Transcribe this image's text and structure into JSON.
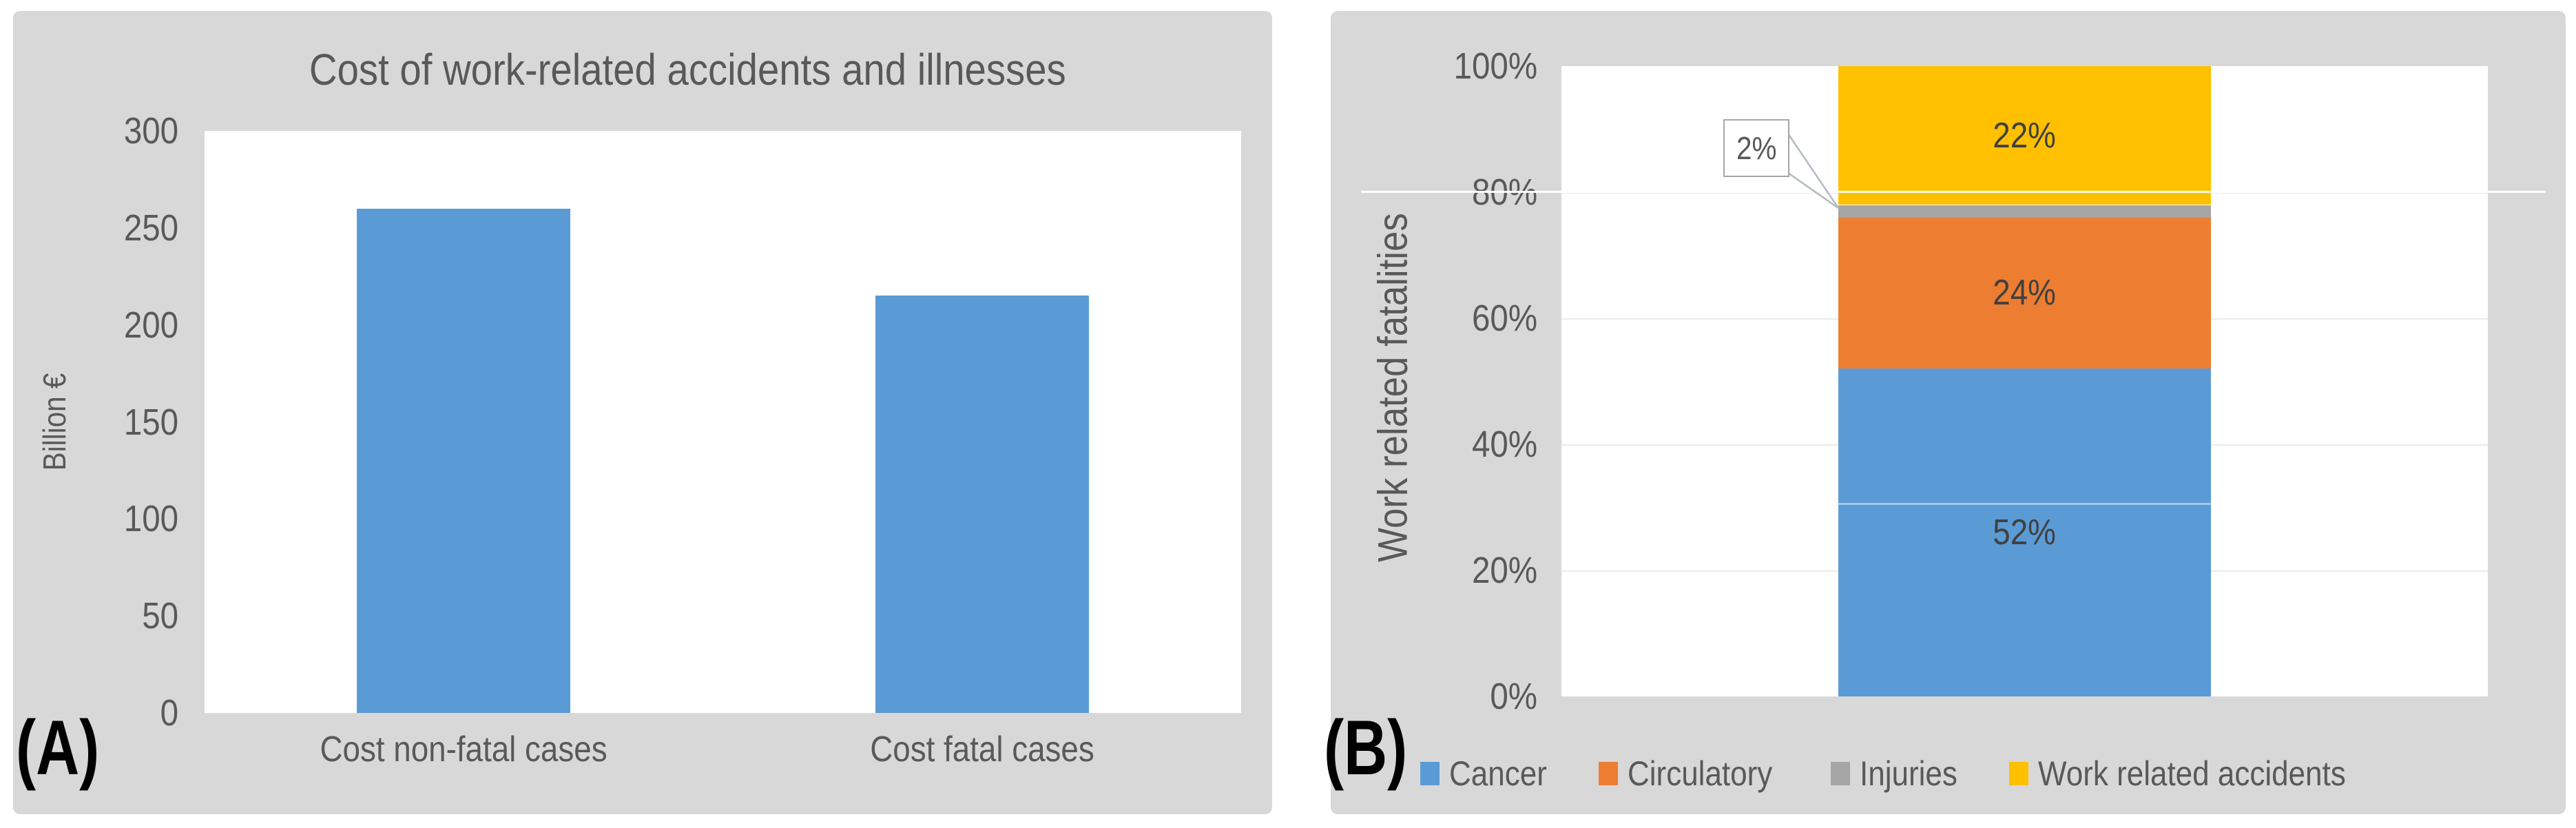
{
  "figure": {
    "panel_count": 2,
    "background_color": "#d8d8d8",
    "text_color": "#595959"
  },
  "chart_data": [
    {
      "id": "A",
      "type": "bar",
      "panel_label": "(A)",
      "title": "Cost of work-related accidents and illnesses",
      "categories": [
        "Cost non-fatal cases",
        "Cost fatal cases"
      ],
      "values": [
        260,
        215
      ],
      "bar_color": "#5B9BD5",
      "xlabel": "",
      "ylabel": "Billion €",
      "ylim": [
        0,
        300
      ],
      "yticks": [
        300,
        250,
        200,
        150,
        100,
        50,
        0
      ],
      "grid": false,
      "legend_position": "none"
    },
    {
      "id": "B",
      "type": "bar",
      "stacked": true,
      "units": "percent",
      "panel_label": "(B)",
      "title": "",
      "categories": [
        "Work related fatalities"
      ],
      "series": [
        {
          "name": "Cancer",
          "color": "#5B9BD5",
          "values": [
            52
          ],
          "data_label": "52%"
        },
        {
          "name": "Circulatory",
          "color": "#ED7D31",
          "values": [
            24
          ],
          "data_label": "24%"
        },
        {
          "name": "Injuries",
          "color": "#A5A5A5",
          "values": [
            2
          ],
          "data_label": "2%",
          "label_style": "callout"
        },
        {
          "name": "Work related accidents",
          "color": "#FFC000",
          "values": [
            22
          ],
          "data_label": "22%"
        }
      ],
      "ylabel": "Work related fatalities",
      "ylim": [
        0,
        100
      ],
      "yticks": [
        "100%",
        "80%",
        "60%",
        "40%",
        "20%",
        "0%"
      ],
      "gridline_percents": [
        20,
        40,
        60,
        80
      ],
      "grid": true,
      "legend_position": "bottom"
    }
  ]
}
